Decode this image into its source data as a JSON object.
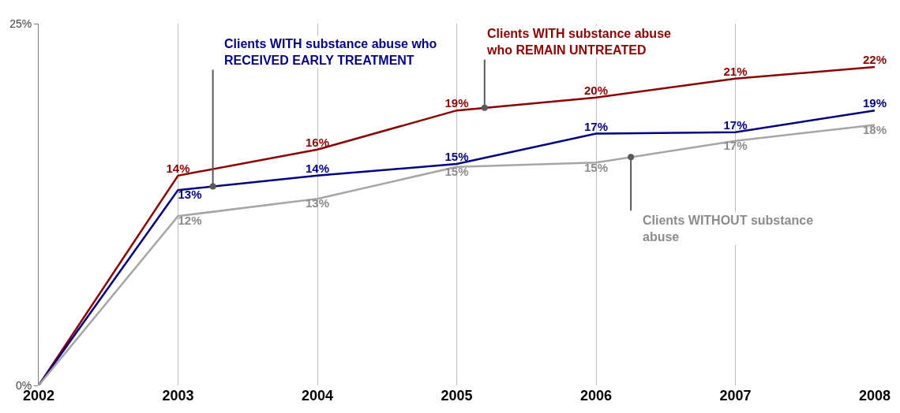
{
  "chart_data": {
    "type": "line",
    "categories": [
      "2002",
      "2003",
      "2004",
      "2005",
      "2006",
      "2007",
      "2008"
    ],
    "series": [
      {
        "name": "Clients WITH substance abuse who REMAIN UNTREATED",
        "color": "#8b0000",
        "values": [
          0,
          14.5,
          16.3,
          19.0,
          19.9,
          21.2,
          22.0
        ],
        "value_labels": [
          null,
          "14%",
          "16%",
          "19%",
          "20%",
          "21%",
          "22%"
        ]
      },
      {
        "name": "Clients WITH substance abuse who RECEIVED EARLY TREATMENT",
        "color": "#000080",
        "values": [
          0,
          13.5,
          14.5,
          15.3,
          17.4,
          17.5,
          19.0
        ],
        "value_labels": [
          null,
          "13%",
          "14%",
          "15%",
          "17%",
          "17%",
          "19%"
        ]
      },
      {
        "name": "Clients WITHOUT substance abuse",
        "color": "#a6a6a6",
        "values": [
          0,
          11.7,
          12.9,
          15.1,
          15.4,
          16.9,
          18.0
        ],
        "value_labels": [
          null,
          "12%",
          "13%",
          "15%",
          "15%",
          "17%",
          "18%"
        ]
      }
    ],
    "ylim": [
      0,
      25
    ],
    "yticks": [
      {
        "value": 0,
        "label": "0%"
      },
      {
        "value": 25,
        "label": "25%"
      }
    ],
    "grid": "x",
    "legend": false,
    "marker": "none",
    "line_style": "solid"
  }
}
